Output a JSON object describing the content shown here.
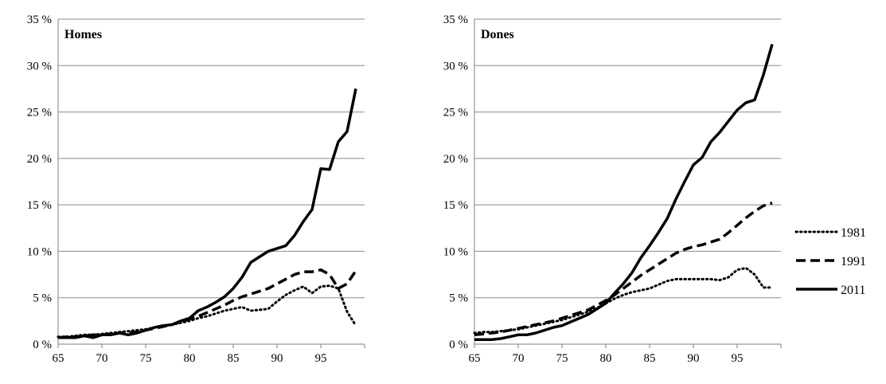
{
  "chart_data": [
    {
      "type": "line",
      "title": "Homes",
      "ylim": [
        0,
        35
      ],
      "y_ticks": [
        "0 %",
        "5 %",
        "10 %",
        "15 %",
        "20 %",
        "25 %",
        "30 %",
        "35 %"
      ],
      "x_ticks": [
        "65",
        "70",
        "75",
        "80",
        "85",
        "90",
        "95"
      ],
      "x_tick_values": [
        65,
        70,
        75,
        80,
        85,
        90,
        95
      ],
      "xlim": [
        65,
        100
      ],
      "grid": true,
      "x": [
        65,
        66,
        67,
        68,
        69,
        70,
        71,
        72,
        73,
        74,
        75,
        76,
        77,
        78,
        79,
        80,
        81,
        82,
        83,
        84,
        85,
        86,
        87,
        88,
        89,
        90,
        91,
        92,
        93,
        94,
        95,
        96,
        97,
        98,
        99
      ],
      "series": [
        {
          "name": "1981",
          "style": "dotted",
          "values": [
            0.8,
            0.8,
            0.9,
            1.0,
            1.0,
            1.1,
            1.2,
            1.3,
            1.4,
            1.5,
            1.6,
            1.8,
            2.0,
            2.1,
            2.3,
            2.5,
            2.8,
            3.0,
            3.3,
            3.6,
            3.8,
            4.0,
            3.6,
            3.7,
            3.8,
            4.6,
            5.3,
            5.8,
            6.2,
            5.5,
            6.2,
            6.3,
            6.0,
            3.5,
            2.0
          ]
        },
        {
          "name": "1991",
          "style": "dashed",
          "values": [
            0.7,
            0.8,
            0.8,
            0.9,
            1.0,
            1.0,
            1.1,
            1.2,
            1.2,
            1.3,
            1.5,
            1.7,
            1.9,
            2.1,
            2.4,
            2.7,
            3.0,
            3.4,
            3.8,
            4.2,
            4.7,
            5.1,
            5.4,
            5.7,
            6.0,
            6.5,
            7.0,
            7.5,
            7.8,
            7.8,
            8.0,
            7.5,
            6.0,
            6.5,
            7.9
          ]
        },
        {
          "name": "2011",
          "style": "solid",
          "values": [
            0.7,
            0.7,
            0.7,
            0.9,
            0.7,
            1.0,
            1.0,
            1.2,
            1.0,
            1.2,
            1.5,
            1.8,
            2.0,
            2.1,
            2.5,
            2.8,
            3.6,
            4.0,
            4.5,
            5.1,
            6.0,
            7.2,
            8.8,
            9.4,
            10.0,
            10.3,
            10.6,
            11.7,
            13.2,
            14.5,
            18.9,
            18.8,
            21.8,
            22.9,
            27.5
          ]
        }
      ]
    },
    {
      "type": "line",
      "title": "Dones",
      "ylim": [
        0,
        35
      ],
      "y_ticks": [
        "0 %",
        "5 %",
        "10 %",
        "15 %",
        "20 %",
        "25 %",
        "30 %",
        "35 %"
      ],
      "x_ticks": [
        "65",
        "70",
        "75",
        "80",
        "85",
        "90",
        "95"
      ],
      "x_tick_values": [
        65,
        70,
        75,
        80,
        85,
        90,
        95
      ],
      "xlim": [
        65,
        100
      ],
      "grid": true,
      "x": [
        65,
        66,
        67,
        68,
        69,
        70,
        71,
        72,
        73,
        74,
        75,
        76,
        77,
        78,
        79,
        80,
        81,
        82,
        83,
        84,
        85,
        86,
        87,
        88,
        89,
        90,
        91,
        92,
        93,
        94,
        95,
        96,
        97,
        98,
        99
      ],
      "series": [
        {
          "name": "1981",
          "style": "dotted",
          "values": [
            1.2,
            1.3,
            1.3,
            1.4,
            1.5,
            1.6,
            1.8,
            2.0,
            2.2,
            2.4,
            2.6,
            2.9,
            3.2,
            3.5,
            3.9,
            4.4,
            4.9,
            5.3,
            5.6,
            5.8,
            6.0,
            6.4,
            6.8,
            7.0,
            7.0,
            7.0,
            7.0,
            7.0,
            6.9,
            7.2,
            8.0,
            8.2,
            7.5,
            6.1,
            6.1
          ]
        },
        {
          "name": "1991",
          "style": "dashed",
          "values": [
            1.0,
            1.1,
            1.2,
            1.3,
            1.5,
            1.7,
            1.9,
            2.1,
            2.3,
            2.5,
            2.8,
            3.1,
            3.4,
            3.7,
            4.2,
            4.7,
            5.3,
            6.0,
            6.7,
            7.4,
            8.0,
            8.6,
            9.2,
            9.8,
            10.2,
            10.5,
            10.7,
            11.0,
            11.3,
            12.0,
            12.8,
            13.6,
            14.3,
            14.9,
            15.2
          ]
        },
        {
          "name": "2011",
          "style": "solid",
          "values": [
            0.5,
            0.5,
            0.5,
            0.6,
            0.8,
            1.0,
            1.0,
            1.2,
            1.5,
            1.8,
            2.0,
            2.4,
            2.8,
            3.2,
            3.8,
            4.4,
            5.5,
            6.5,
            7.7,
            9.3,
            10.6,
            12.0,
            13.5,
            15.6,
            17.5,
            19.3,
            20.1,
            21.8,
            22.8,
            24.0,
            25.2,
            26.0,
            26.3,
            29.0,
            32.3
          ]
        }
      ]
    }
  ],
  "legend": {
    "placement": "right",
    "items": [
      {
        "name": "1981",
        "style": "dotted"
      },
      {
        "name": "1991",
        "style": "dashed"
      },
      {
        "name": "2011",
        "style": "solid"
      }
    ]
  }
}
